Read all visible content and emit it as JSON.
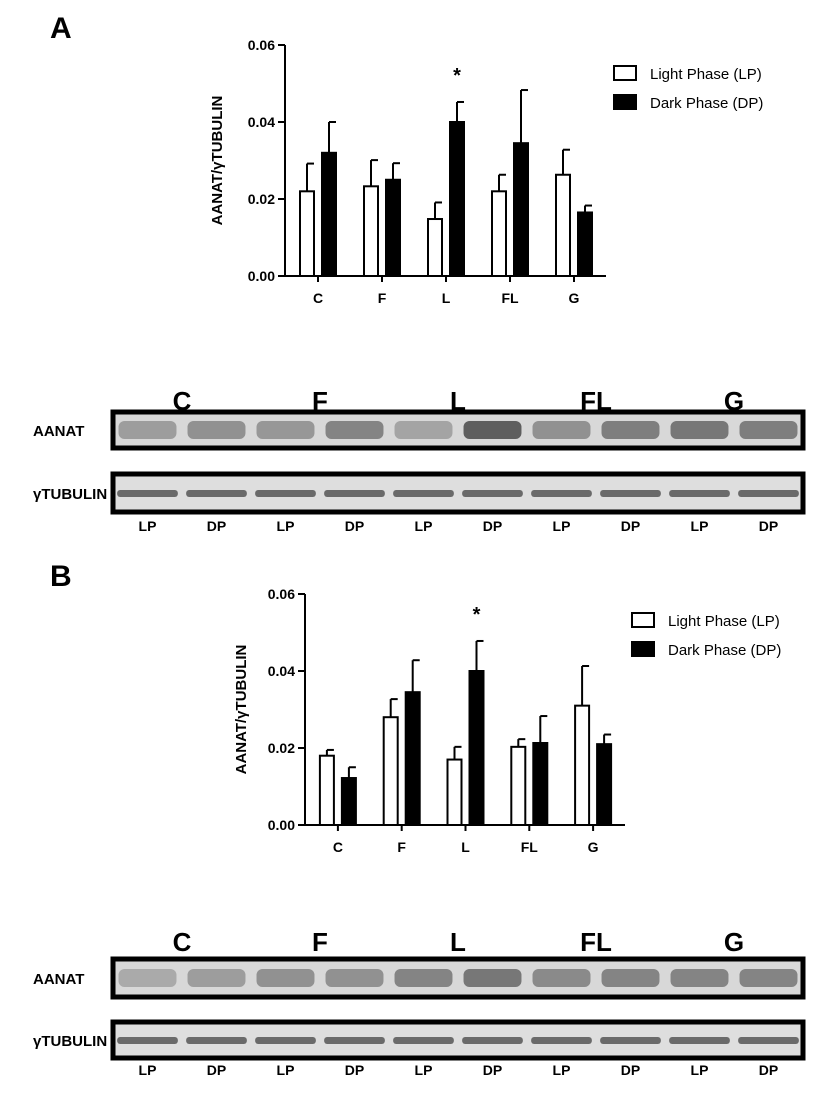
{
  "panels": [
    {
      "letter": "A",
      "chart_data": {
        "type": "bar",
        "ylabel": "AANAT/γTUBULIN",
        "ylim": [
          0,
          0.06
        ],
        "yticks": [
          "0.00",
          "0.02",
          "0.04",
          "0.06"
        ],
        "categories": [
          "C",
          "F",
          "L",
          "FL",
          "G"
        ],
        "series": [
          {
            "name": "Light Phase (LP)",
            "fill": "#ffffff",
            "values": [
              0.022,
              0.0233,
              0.0148,
              0.022,
              0.0263
            ],
            "errors": [
              0.0072,
              0.0068,
              0.0043,
              0.0043,
              0.0065
            ]
          },
          {
            "name": "Dark Phase (DP)",
            "fill": "#000000",
            "values": [
              0.032,
              0.025,
              0.04,
              0.0345,
              0.0165
            ],
            "errors": [
              0.008,
              0.0043,
              0.0052,
              0.0138,
              0.0018
            ]
          }
        ],
        "annotations": [
          {
            "category": "L",
            "text": "*"
          }
        ],
        "legend_position": "top-right"
      },
      "blot": {
        "lanes": [
          "C",
          "F",
          "L",
          "FL",
          "G"
        ],
        "rows": [
          "AANAT",
          "γTUBULIN"
        ],
        "phases": [
          "LP",
          "DP",
          "LP",
          "DP",
          "LP",
          "DP",
          "LP",
          "DP",
          "LP",
          "DP"
        ],
        "aanat_intensity": [
          0.35,
          0.45,
          0.4,
          0.55,
          0.3,
          0.85,
          0.45,
          0.6,
          0.65,
          0.6
        ]
      }
    },
    {
      "letter": "B",
      "chart_data": {
        "type": "bar",
        "ylabel": "AANAT/γTUBULIN",
        "ylim": [
          0,
          0.06
        ],
        "yticks": [
          "0.00",
          "0.02",
          "0.04",
          "0.06"
        ],
        "categories": [
          "C",
          "F",
          "L",
          "FL",
          "G"
        ],
        "series": [
          {
            "name": "Light Phase (LP)",
            "fill": "#ffffff",
            "values": [
              0.018,
              0.028,
              0.017,
              0.0203,
              0.031
            ],
            "errors": [
              0.0015,
              0.0047,
              0.0033,
              0.002,
              0.0103
            ]
          },
          {
            "name": "Dark Phase (DP)",
            "fill": "#000000",
            "values": [
              0.0122,
              0.0345,
              0.04,
              0.0213,
              0.021
            ],
            "errors": [
              0.0028,
              0.0083,
              0.0078,
              0.007,
              0.0025
            ]
          }
        ],
        "annotations": [
          {
            "category": "L",
            "text": "*"
          }
        ],
        "legend_position": "top-right"
      },
      "blot": {
        "lanes": [
          "C",
          "F",
          "L",
          "FL",
          "G"
        ],
        "rows": [
          "AANAT",
          "γTUBULIN"
        ],
        "phases": [
          "LP",
          "DP",
          "LP",
          "DP",
          "LP",
          "DP",
          "LP",
          "DP",
          "LP",
          "DP"
        ],
        "aanat_intensity": [
          0.25,
          0.35,
          0.45,
          0.45,
          0.55,
          0.65,
          0.5,
          0.55,
          0.55,
          0.55
        ]
      }
    }
  ]
}
